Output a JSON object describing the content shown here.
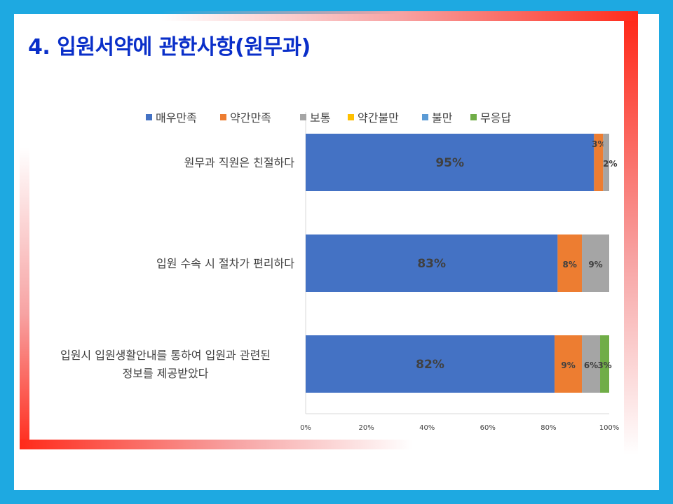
{
  "title": "4. 입원서약에 관한사항(원무과)",
  "colors": {
    "background": "#1ea9e1",
    "title": "#0a2fc9",
    "accent_red": "#ff2a1a"
  },
  "chart_data": {
    "type": "bar",
    "orientation": "horizontal",
    "stacked": true,
    "categories": [
      [
        "원무과 직원은 친절하다"
      ],
      [
        "입원 수속 시 절차가 편리하다"
      ],
      [
        "입원시 입원생활안내를 통하여 입원과 관련된",
        "정보를 제공받았다"
      ]
    ],
    "series": [
      {
        "name": "매우만족",
        "color": "#4472c4",
        "values": [
          95,
          83,
          82
        ],
        "labels": [
          "95%",
          "83%",
          "82%"
        ]
      },
      {
        "name": "약간만족",
        "color": "#ed7d31",
        "values": [
          3,
          8,
          9
        ],
        "labels": [
          "3%",
          "8%",
          "9%"
        ]
      },
      {
        "name": "보통",
        "color": "#a5a5a5",
        "values": [
          2,
          9,
          6
        ],
        "labels": [
          "2%",
          "9%",
          "6%"
        ]
      },
      {
        "name": "약간불만",
        "color": "#ffc000",
        "values": [
          0,
          0,
          0
        ],
        "labels": [
          "",
          "",
          ""
        ]
      },
      {
        "name": "불만",
        "color": "#5b9bd5",
        "values": [
          0,
          0,
          0
        ],
        "labels": [
          "",
          "",
          ""
        ]
      },
      {
        "name": "무응답",
        "color": "#70ad47",
        "values": [
          0,
          0,
          3
        ],
        "labels": [
          "",
          "",
          "3%"
        ]
      }
    ],
    "xlim": [
      0,
      100
    ],
    "x_ticks": [
      "0%",
      "20%",
      "40%",
      "60%",
      "80%",
      "100%"
    ],
    "grid": false,
    "legend_position": "top"
  }
}
